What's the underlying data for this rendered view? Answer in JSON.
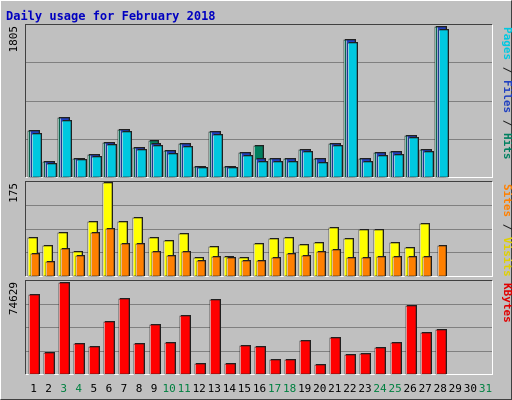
{
  "chart_data": {
    "type": "bar",
    "title": "Daily usage for February 2018",
    "categories": [
      "1",
      "2",
      "3",
      "4",
      "5",
      "6",
      "7",
      "8",
      "9",
      "10",
      "11",
      "12",
      "13",
      "14",
      "15",
      "16",
      "17",
      "18",
      "19",
      "20",
      "21",
      "22",
      "23",
      "24",
      "25",
      "26",
      "27",
      "28",
      "29",
      "30",
      "31"
    ],
    "weekend_days": [
      "3",
      "4",
      "10",
      "11",
      "17",
      "18",
      "24",
      "25",
      "31"
    ],
    "grid": true,
    "panels": [
      {
        "id": "hits",
        "max_label": "1805",
        "ylim": [
          0,
          1805
        ],
        "label_parts": [
          "Pages",
          " / ",
          "Files",
          " / ",
          "Hits"
        ],
        "label_colors": [
          "#00c8e0",
          "#202020",
          "#2040c0",
          "#202020",
          "#008060"
        ],
        "series": [
          {
            "name": "Hits",
            "color": "#008060",
            "values": [
              547,
              184,
              702,
              217,
              266,
              411,
              565,
              351,
              434,
              311,
              394,
              123,
              535,
              123,
              287,
              367,
              211,
              211,
              328,
              218,
              396,
              1636,
              219,
              288,
              295,
              494,
              328,
              1795,
              0,
              0,
              0
            ]
          },
          {
            "name": "Files",
            "color": "#2040c0",
            "values": [
              547,
              184,
              702,
              217,
              266,
              411,
              565,
              351,
              398,
              311,
              394,
              123,
              535,
              123,
              287,
              211,
              211,
              211,
              328,
              218,
              396,
              1636,
              219,
              288,
              295,
              494,
              328,
              1795,
              0,
              0,
              0
            ]
          },
          {
            "name": "Pages",
            "color": "#00c8e0",
            "values": [
              515,
              160,
              670,
              200,
              236,
              380,
              534,
              320,
              368,
              280,
              362,
              103,
              504,
              103,
              256,
              180,
              180,
              180,
              297,
              170,
              366,
              1605,
              185,
              257,
              265,
              462,
              300,
              1757,
              0,
              0,
              0
            ]
          }
        ]
      },
      {
        "id": "visits",
        "max_label": "175",
        "ylim": [
          0,
          175
        ],
        "label_parts": [
          "Sites",
          " / ",
          "Visits"
        ],
        "label_colors": [
          "#ff8000",
          "#202020",
          "#e0d000"
        ],
        "series": [
          {
            "name": "Visits",
            "color": "#ffff00",
            "values": [
              72,
              57,
              81,
              45,
              102,
              175,
              101,
              110,
              71,
              66,
              79,
              34,
              54,
              36,
              33,
              61,
              70,
              71,
              58,
              63,
              90,
              69,
              87,
              87,
              62,
              52,
              98,
              0,
              0,
              0,
              0
            ]
          },
          {
            "name": "Sites",
            "color": "#ff8000",
            "values": [
              42,
              26,
              50,
              37,
              80,
              89,
              60,
              61,
              45,
              38,
              46,
              29,
              36,
              33,
              28,
              29,
              34,
              41,
              37,
              45,
              48,
              34,
              33,
              35,
              36,
              36,
              36,
              57,
              0,
              0,
              0
            ]
          }
        ]
      },
      {
        "id": "kbytes",
        "max_label": "74629",
        "ylim": [
          0,
          74629
        ],
        "label_parts": [
          "KBytes"
        ],
        "label_colors": [
          "#e00000"
        ],
        "series": [
          {
            "name": "KBytes",
            "color": "#ff0000",
            "values": [
              64200,
              17000,
              74100,
              24000,
              22000,
              42000,
              61000,
              24000,
              40000,
              25000,
              47000,
              8500,
              60000,
              8500,
              23000,
              21500,
              11000,
              11000,
              27000,
              7000,
              29000,
              15500,
              16000,
              21000,
              25000,
              55000,
              33000,
              36000,
              0,
              0,
              0
            ]
          }
        ]
      }
    ]
  }
}
